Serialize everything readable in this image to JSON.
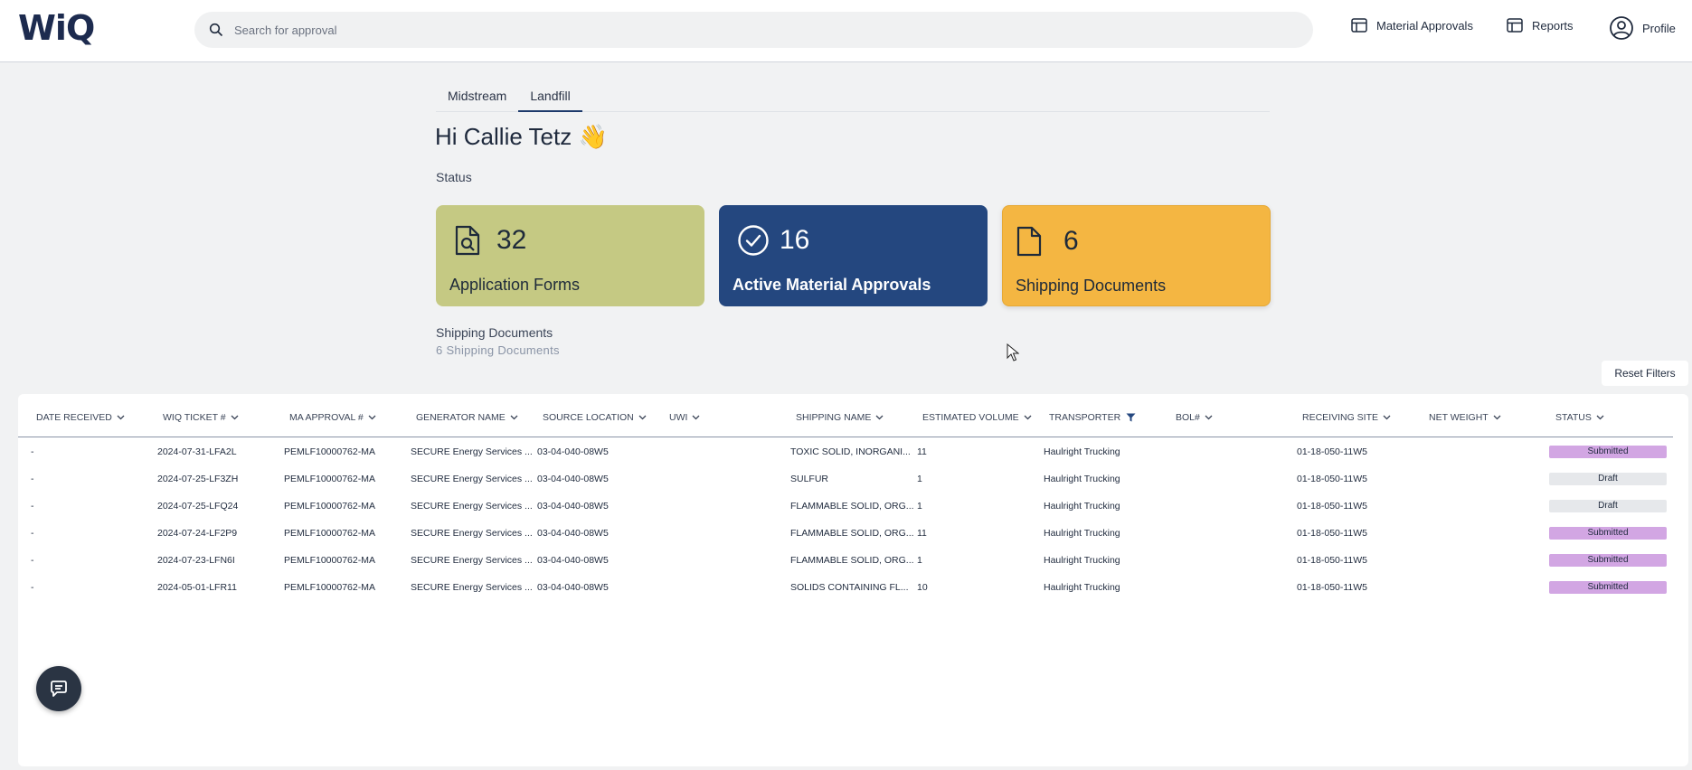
{
  "app": {
    "logo": "WiQ"
  },
  "search": {
    "placeholder": "Search for approval"
  },
  "nav": {
    "material_approvals": "Material Approvals",
    "reports": "Reports",
    "profile": "Profile"
  },
  "tabs": [
    {
      "label": "Midstream",
      "active": false
    },
    {
      "label": "Landfill",
      "active": true
    }
  ],
  "greeting": "Hi Callie Tetz 👋",
  "status_label": "Status",
  "cards": {
    "forms": {
      "count": "32",
      "label": "Application Forms",
      "icon": "document-search-icon"
    },
    "active": {
      "count": "16",
      "label": "Active Material Approvals",
      "icon": "check-circle-icon"
    },
    "shipping": {
      "count": "6",
      "label": "Shipping Documents",
      "icon": "document-icon"
    }
  },
  "section": {
    "title": "Shipping Documents",
    "subtitle": "6 Shipping Documents"
  },
  "reset_filters": "Reset Filters",
  "table": {
    "headers": {
      "date_received": "DATE RECEIVED",
      "wiq_ticket": "WIQ TICKET #",
      "ma_approval": "MA APPROVAL #",
      "generator_name": "GENERATOR NAME",
      "source_location": "SOURCE LOCATION",
      "uwi": "UWI",
      "shipping_name": "SHIPPING NAME",
      "estimated_volume": "ESTIMATED VOLUME",
      "transporter": "TRANSPORTER",
      "bol": "BOL#",
      "receiving_site": "RECEIVING SITE",
      "net_weight": "NET WEIGHT",
      "status": "STATUS"
    },
    "rows": [
      {
        "date": "-",
        "ticket": "2024-07-31-LFA2L",
        "ma": "PEMLF10000762-MA",
        "generator": "SECURE Energy Services ...",
        "source": "03-04-040-08W5",
        "uwi": "",
        "shipping": "TOXIC SOLID, INORGANI...",
        "volume": "11",
        "transporter": "Haulright Trucking",
        "bol": "",
        "site": "01-18-050-11W5",
        "weight": "",
        "status": "Submitted",
        "status_key": "submitted"
      },
      {
        "date": "-",
        "ticket": "2024-07-25-LF3ZH",
        "ma": "PEMLF10000762-MA",
        "generator": "SECURE Energy Services ...",
        "source": "03-04-040-08W5",
        "uwi": "",
        "shipping": "SULFUR",
        "volume": "1",
        "transporter": "Haulright Trucking",
        "bol": "",
        "site": "01-18-050-11W5",
        "weight": "",
        "status": "Draft",
        "status_key": "draft"
      },
      {
        "date": "-",
        "ticket": "2024-07-25-LFQ24",
        "ma": "PEMLF10000762-MA",
        "generator": "SECURE Energy Services ...",
        "source": "03-04-040-08W5",
        "uwi": "",
        "shipping": "FLAMMABLE SOLID, ORG...",
        "volume": "1",
        "transporter": "Haulright Trucking",
        "bol": "",
        "site": "01-18-050-11W5",
        "weight": "",
        "status": "Draft",
        "status_key": "draft"
      },
      {
        "date": "-",
        "ticket": "2024-07-24-LF2P9",
        "ma": "PEMLF10000762-MA",
        "generator": "SECURE Energy Services ...",
        "source": "03-04-040-08W5",
        "uwi": "",
        "shipping": "FLAMMABLE SOLID, ORG...",
        "volume": "11",
        "transporter": "Haulright Trucking",
        "bol": "",
        "site": "01-18-050-11W5",
        "weight": "",
        "status": "Submitted",
        "status_key": "submitted"
      },
      {
        "date": "-",
        "ticket": "2024-07-23-LFN6I",
        "ma": "PEMLF10000762-MA",
        "generator": "SECURE Energy Services ...",
        "source": "03-04-040-08W5",
        "uwi": "",
        "shipping": "FLAMMABLE SOLID, ORG...",
        "volume": "1",
        "transporter": "Haulright Trucking",
        "bol": "",
        "site": "01-18-050-11W5",
        "weight": "",
        "status": "Submitted",
        "status_key": "submitted"
      },
      {
        "date": "-",
        "ticket": "2024-05-01-LFR11",
        "ma": "PEMLF10000762-MA",
        "generator": "SECURE Energy Services ...",
        "source": "03-04-040-08W5",
        "uwi": "",
        "shipping": "SOLIDS CONTAINING FL...",
        "volume": "10",
        "transporter": "Haulright Trucking",
        "bol": "",
        "site": "01-18-050-11W5",
        "weight": "",
        "status": "Submitted",
        "status_key": "submitted"
      }
    ]
  },
  "colors": {
    "forms_card": "#c5c983",
    "active_card": "#24477f",
    "shipping_card": "#f4b642",
    "submitted_badge": "#d2a6e3",
    "draft_badge": "#e6e8eb"
  }
}
